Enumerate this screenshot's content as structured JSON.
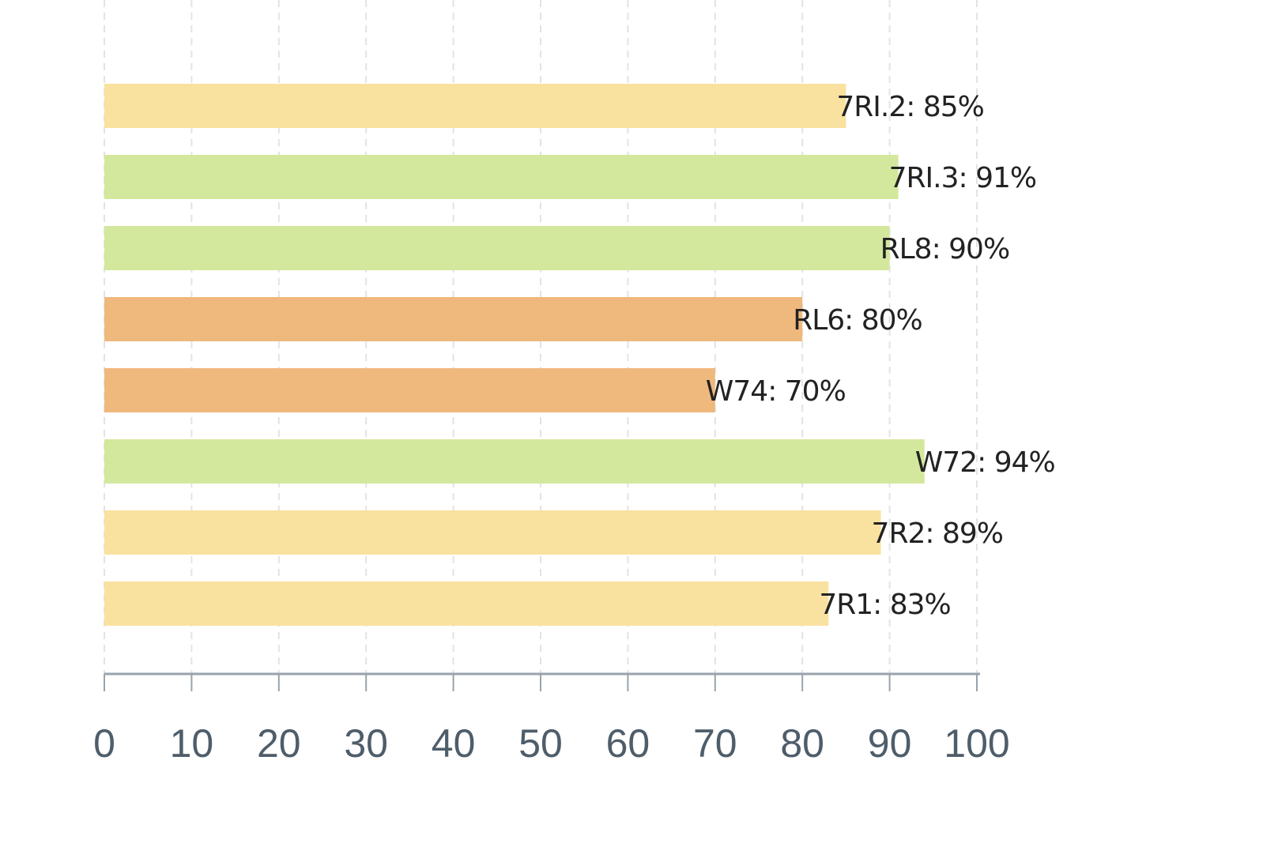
{
  "chart_data": {
    "type": "bar",
    "orientation": "horizontal",
    "categories": [
      "7RI.2",
      "7RI.3",
      "RL8",
      "RL6",
      "W74",
      "W72",
      "7R2",
      "7R1"
    ],
    "values": [
      85,
      91,
      90,
      80,
      70,
      94,
      89,
      83
    ],
    "bar_labels": [
      "7RI.2: 85%",
      "7RI.3: 91%",
      "RL8: 90%",
      "RL6: 80%",
      "W74: 70%",
      "W72: 94%",
      "7R2: 89%",
      "7R1: 83%"
    ],
    "bar_colors": [
      "#f9e19f",
      "#d3e89c",
      "#d3e89c",
      "#efb87d",
      "#efb87d",
      "#d3e89c",
      "#f9e19f",
      "#f9e19f"
    ],
    "xlim": [
      0,
      100
    ],
    "x_ticks": [
      "0",
      "10",
      "20",
      "30",
      "40",
      "50",
      "60",
      "70",
      "80",
      "90",
      "100"
    ],
    "grid": true,
    "legend": "none",
    "title": "",
    "xlabel": "",
    "ylabel": ""
  },
  "colors": {
    "axis": "#98a3ad",
    "grid": "#e3e3e3",
    "tick_text": "#4e5d6a",
    "label_text": "#222222"
  }
}
